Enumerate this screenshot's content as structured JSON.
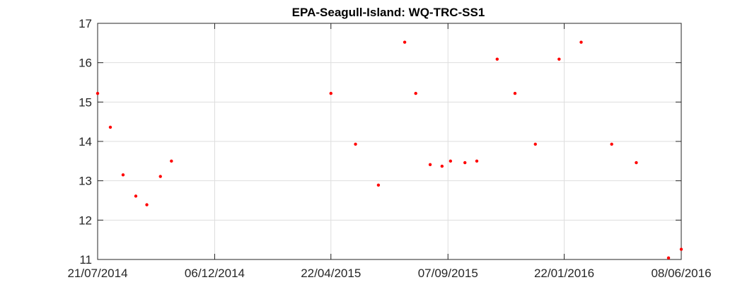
{
  "chart_data": {
    "type": "scatter",
    "title": "EPA-Seagull-Island: WQ-TRC-SS1",
    "xlabel": "",
    "ylabel": "",
    "x_type": "date",
    "x_tick_dates": [
      "2014-07-21",
      "2014-12-06",
      "2015-04-22",
      "2015-09-07",
      "2016-01-22",
      "2016-06-08"
    ],
    "x_tick_labels": [
      "21/07/2014",
      "06/12/2014",
      "22/04/2015",
      "07/09/2015",
      "22/01/2016",
      "08/06/2016"
    ],
    "xlim": [
      "2014-07-21",
      "2016-06-08"
    ],
    "ylim": [
      11,
      17
    ],
    "y_ticks": [
      11,
      12,
      13,
      14,
      15,
      16,
      17
    ],
    "grid": true,
    "marker_color": "#ff0000",
    "series": [
      {
        "points": [
          {
            "x": "2014-07-21",
            "y": 15.22
          },
          {
            "x": "2014-08-05",
            "y": 14.36
          },
          {
            "x": "2014-08-20",
            "y": 13.15
          },
          {
            "x": "2014-09-04",
            "y": 12.61
          },
          {
            "x": "2014-09-17",
            "y": 12.39
          },
          {
            "x": "2014-10-03",
            "y": 13.11
          },
          {
            "x": "2014-10-16",
            "y": 13.5
          },
          {
            "x": "2015-04-22",
            "y": 15.22
          },
          {
            "x": "2015-05-21",
            "y": 13.93
          },
          {
            "x": "2015-06-17",
            "y": 12.89
          },
          {
            "x": "2015-07-18",
            "y": 16.52
          },
          {
            "x": "2015-07-31",
            "y": 15.22
          },
          {
            "x": "2015-08-17",
            "y": 13.41
          },
          {
            "x": "2015-08-31",
            "y": 13.37
          },
          {
            "x": "2015-09-10",
            "y": 13.5
          },
          {
            "x": "2015-09-27",
            "y": 13.46
          },
          {
            "x": "2015-10-11",
            "y": 13.5
          },
          {
            "x": "2015-11-04",
            "y": 16.09
          },
          {
            "x": "2015-11-25",
            "y": 15.22
          },
          {
            "x": "2015-12-19",
            "y": 13.93
          },
          {
            "x": "2016-01-16",
            "y": 16.09
          },
          {
            "x": "2016-02-11",
            "y": 16.52
          },
          {
            "x": "2016-03-18",
            "y": 13.93
          },
          {
            "x": "2016-04-16",
            "y": 13.46
          },
          {
            "x": "2016-05-24",
            "y": 11.04
          },
          {
            "x": "2016-06-08",
            "y": 11.26
          }
        ]
      }
    ]
  }
}
